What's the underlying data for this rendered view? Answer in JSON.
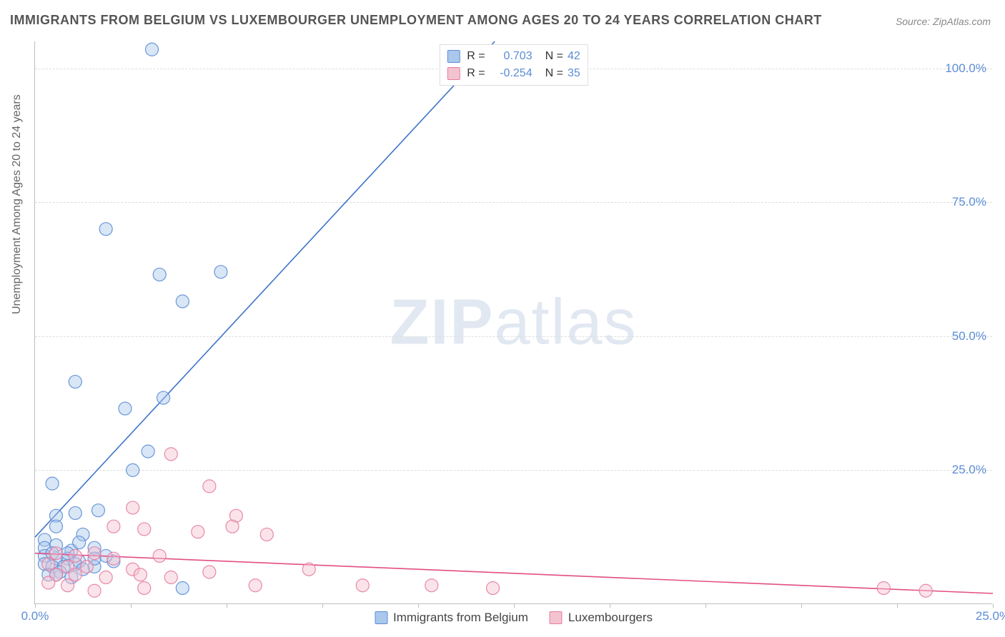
{
  "title": "IMMIGRANTS FROM BELGIUM VS LUXEMBOURGER UNEMPLOYMENT AMONG AGES 20 TO 24 YEARS CORRELATION CHART",
  "source_label": "Source: ZipAtlas.com",
  "watermark_a": "ZIP",
  "watermark_b": "atlas",
  "chart": {
    "type": "scatter",
    "background_color": "#ffffff",
    "grid_color": "#dddddd",
    "axis_color": "#bdbdbd",
    "tick_font_color": "#5b8dd6",
    "tick_fontsize": 17,
    "title_fontsize": 18,
    "title_color": "#555555",
    "ylabel": "Unemployment Among Ages 20 to 24 years",
    "label_fontsize": 16,
    "label_color": "#666666",
    "xlim": [
      0,
      25
    ],
    "ylim": [
      0,
      105
    ],
    "xticks": [
      0,
      25
    ],
    "xtick_labels": [
      "0.0%",
      "25.0%"
    ],
    "xtick_minor_step": 2.5,
    "yticks": [
      25,
      50,
      75,
      100
    ],
    "ytick_labels": [
      "25.0%",
      "50.0%",
      "75.0%",
      "100.0%"
    ],
    "marker_radius": 9,
    "marker_opacity": 0.45,
    "marker_stroke_width": 1.2,
    "line_width": 1.6,
    "series": [
      {
        "name": "Immigrants from Belgium",
        "color_fill": "#a9c8ec",
        "color_stroke": "#5b8dd6",
        "line_color": "#3f74c8",
        "r_value": "0.703",
        "n_value": "42",
        "trend_line": {
          "x1": 0,
          "y1": 12.5,
          "x2": 12.0,
          "y2": 105
        },
        "points": [
          [
            3.05,
            103.5
          ],
          [
            1.85,
            70.0
          ],
          [
            3.25,
            61.5
          ],
          [
            4.85,
            62.0
          ],
          [
            3.85,
            56.5
          ],
          [
            1.05,
            41.5
          ],
          [
            2.35,
            36.5
          ],
          [
            3.35,
            38.5
          ],
          [
            2.55,
            25.0
          ],
          [
            0.45,
            22.5
          ],
          [
            2.95,
            28.5
          ],
          [
            1.05,
            17.0
          ],
          [
            1.65,
            17.5
          ],
          [
            0.25,
            12.0
          ],
          [
            0.55,
            16.5
          ],
          [
            0.55,
            14.5
          ],
          [
            1.25,
            13.0
          ],
          [
            0.25,
            10.5
          ],
          [
            0.55,
            11.0
          ],
          [
            0.95,
            10.0
          ],
          [
            0.25,
            9.0
          ],
          [
            0.55,
            8.5
          ],
          [
            0.85,
            8.5
          ],
          [
            1.15,
            8.0
          ],
          [
            1.55,
            10.5
          ],
          [
            0.25,
            7.5
          ],
          [
            0.45,
            7.0
          ],
          [
            0.75,
            7.0
          ],
          [
            1.05,
            7.5
          ],
          [
            1.55,
            7.0
          ],
          [
            2.05,
            8.0
          ],
          [
            0.65,
            6.0
          ],
          [
            1.25,
            6.5
          ],
          [
            0.35,
            5.5
          ],
          [
            0.55,
            5.5
          ],
          [
            0.95,
            5.0
          ],
          [
            1.55,
            8.5
          ],
          [
            0.45,
            9.5
          ],
          [
            3.85,
            3.0
          ],
          [
            1.15,
            11.5
          ],
          [
            0.85,
            9.5
          ],
          [
            1.85,
            9.0
          ]
        ]
      },
      {
        "name": "Luxembourgers",
        "color_fill": "#f3c3d0",
        "color_stroke": "#e77ba0",
        "line_color": "#e24e85",
        "r_value": "-0.254",
        "n_value": "35",
        "trend_line": {
          "x1": 0,
          "y1": 9.5,
          "x2": 25,
          "y2": 2.0
        },
        "points": [
          [
            3.55,
            28.0
          ],
          [
            4.55,
            22.0
          ],
          [
            2.55,
            18.0
          ],
          [
            5.25,
            16.5
          ],
          [
            2.05,
            14.5
          ],
          [
            2.85,
            14.0
          ],
          [
            4.25,
            13.5
          ],
          [
            5.15,
            14.5
          ],
          [
            6.05,
            13.0
          ],
          [
            0.55,
            9.5
          ],
          [
            1.05,
            9.0
          ],
          [
            1.55,
            9.5
          ],
          [
            2.05,
            8.5
          ],
          [
            3.25,
            9.0
          ],
          [
            2.55,
            6.5
          ],
          [
            1.35,
            7.0
          ],
          [
            0.35,
            7.5
          ],
          [
            0.85,
            7.0
          ],
          [
            0.55,
            5.5
          ],
          [
            1.05,
            5.5
          ],
          [
            1.85,
            5.0
          ],
          [
            2.75,
            5.5
          ],
          [
            3.55,
            5.0
          ],
          [
            4.55,
            6.0
          ],
          [
            0.35,
            4.0
          ],
          [
            0.85,
            3.5
          ],
          [
            1.55,
            2.5
          ],
          [
            2.85,
            3.0
          ],
          [
            5.75,
            3.5
          ],
          [
            7.15,
            6.5
          ],
          [
            8.55,
            3.5
          ],
          [
            10.35,
            3.5
          ],
          [
            11.95,
            3.0
          ],
          [
            22.15,
            3.0
          ],
          [
            23.25,
            2.5
          ]
        ]
      }
    ]
  }
}
